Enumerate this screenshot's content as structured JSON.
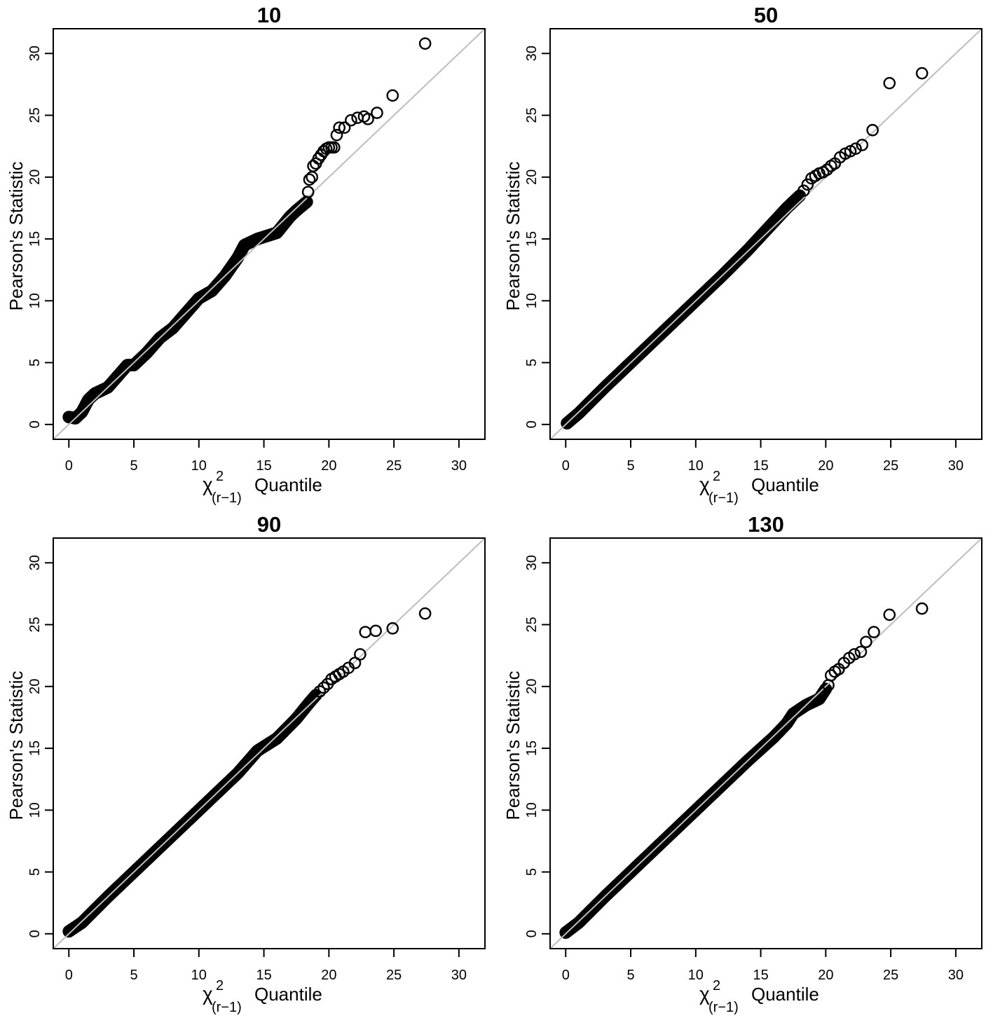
{
  "chart_data": [
    {
      "type": "scatter",
      "title": "10",
      "xlabel_symbol": "χ",
      "xlabel_superscript": "2",
      "xlabel_subscript": "(r−1)",
      "xlabel_text": "Quantile",
      "ylabel": "Pearson's Statistic",
      "xlim": [
        -1.2,
        32
      ],
      "ylim": [
        -1.2,
        32
      ],
      "xticks": [
        "0",
        "5",
        "10",
        "15",
        "20",
        "25",
        "30"
      ],
      "yticks": [
        "0",
        "5",
        "10",
        "15",
        "20",
        "25",
        "30"
      ],
      "reference_line": "y = x",
      "reference_line_color": "#bdbdbd",
      "point_style": "open-circle",
      "grid": false,
      "series": [
        {
          "dense_trend": [
            [
              0.0,
              0.6
            ],
            [
              0.5,
              0.5
            ],
            [
              1.0,
              1.0
            ],
            [
              1.5,
              2.0
            ],
            [
              2.0,
              2.5
            ],
            [
              3.0,
              3.0
            ],
            [
              4.0,
              4.2
            ],
            [
              4.5,
              4.8
            ],
            [
              5.0,
              4.8
            ],
            [
              6.0,
              5.8
            ],
            [
              7.0,
              7.0
            ],
            [
              8.0,
              7.8
            ],
            [
              9.0,
              9.0
            ],
            [
              10.0,
              10.2
            ],
            [
              11.0,
              10.8
            ],
            [
              12.0,
              12.0
            ],
            [
              13.0,
              13.5
            ],
            [
              13.5,
              14.5
            ],
            [
              14.5,
              15.0
            ],
            [
              16.0,
              15.5
            ],
            [
              17.0,
              16.8
            ],
            [
              17.5,
              17.3
            ],
            [
              18.3,
              18.0
            ]
          ],
          "scatter_points": [
            [
              18.4,
              18.8
            ],
            [
              18.5,
              19.8
            ],
            [
              18.7,
              20.0
            ],
            [
              18.8,
              20.9
            ],
            [
              19.0,
              21.1
            ],
            [
              19.2,
              21.5
            ],
            [
              19.4,
              21.8
            ],
            [
              19.6,
              22.1
            ],
            [
              19.8,
              22.3
            ],
            [
              20.0,
              22.4
            ],
            [
              20.2,
              22.4
            ],
            [
              20.4,
              22.4
            ],
            [
              20.6,
              23.4
            ],
            [
              20.8,
              24.0
            ],
            [
              21.2,
              24.0
            ],
            [
              21.7,
              24.6
            ],
            [
              22.2,
              24.8
            ],
            [
              22.7,
              24.9
            ],
            [
              23.0,
              24.7
            ],
            [
              23.7,
              25.2
            ],
            [
              24.9,
              26.6
            ],
            [
              27.4,
              30.8
            ]
          ]
        }
      ]
    },
    {
      "type": "scatter",
      "title": "50",
      "xlabel_symbol": "χ",
      "xlabel_superscript": "2",
      "xlabel_subscript": "(r−1)",
      "xlabel_text": "Quantile",
      "ylabel": "Pearson's Statistic",
      "xlim": [
        -1.2,
        32
      ],
      "ylim": [
        -1.2,
        32
      ],
      "xticks": [
        "0",
        "5",
        "10",
        "15",
        "20",
        "25",
        "30"
      ],
      "yticks": [
        "0",
        "5",
        "10",
        "15",
        "20",
        "25",
        "30"
      ],
      "reference_line": "y = x",
      "reference_line_color": "#bdbdbd",
      "point_style": "open-circle",
      "grid": false,
      "series": [
        {
          "dense_trend": [
            [
              0.1,
              0.1
            ],
            [
              1.0,
              0.9
            ],
            [
              3.0,
              3.0
            ],
            [
              5.0,
              5.0
            ],
            [
              8.0,
              8.0
            ],
            [
              10.0,
              10.0
            ],
            [
              12.0,
              12.0
            ],
            [
              14.0,
              14.1
            ],
            [
              15.5,
              15.8
            ],
            [
              17.0,
              17.5
            ],
            [
              18.0,
              18.5
            ]
          ],
          "scatter_points": [
            [
              18.3,
              18.9
            ],
            [
              18.6,
              19.4
            ],
            [
              18.9,
              19.9
            ],
            [
              19.2,
              20.1
            ],
            [
              19.5,
              20.3
            ],
            [
              19.8,
              20.4
            ],
            [
              20.1,
              20.6
            ],
            [
              20.4,
              20.9
            ],
            [
              20.7,
              21.1
            ],
            [
              21.1,
              21.6
            ],
            [
              21.5,
              21.9
            ],
            [
              21.9,
              22.1
            ],
            [
              22.3,
              22.3
            ],
            [
              22.8,
              22.6
            ],
            [
              23.6,
              23.8
            ],
            [
              24.9,
              27.6
            ],
            [
              27.4,
              28.4
            ]
          ]
        }
      ]
    },
    {
      "type": "scatter",
      "title": "90",
      "xlabel_symbol": "χ",
      "xlabel_superscript": "2",
      "xlabel_subscript": "(r−1)",
      "xlabel_text": "Quantile",
      "ylabel": "Pearson's Statistic",
      "xlim": [
        -1.2,
        32
      ],
      "ylim": [
        -1.2,
        32
      ],
      "xticks": [
        "0",
        "5",
        "10",
        "15",
        "20",
        "25",
        "30"
      ],
      "yticks": [
        "0",
        "5",
        "10",
        "15",
        "20",
        "25",
        "30"
      ],
      "reference_line": "y = x",
      "reference_line_color": "#bdbdbd",
      "point_style": "open-circle",
      "grid": false,
      "series": [
        {
          "dense_trend": [
            [
              0.0,
              0.2
            ],
            [
              1.0,
              0.9
            ],
            [
              3.0,
              3.0
            ],
            [
              5.0,
              5.0
            ],
            [
              8.0,
              8.0
            ],
            [
              11.0,
              11.0
            ],
            [
              13.0,
              13.0
            ],
            [
              14.5,
              14.8
            ],
            [
              16.0,
              15.8
            ],
            [
              17.5,
              17.4
            ],
            [
              18.5,
              18.7
            ],
            [
              19.0,
              19.3
            ]
          ],
          "scatter_points": [
            [
              19.3,
              19.6
            ],
            [
              19.6,
              19.9
            ],
            [
              19.9,
              20.2
            ],
            [
              20.2,
              20.6
            ],
            [
              20.5,
              20.8
            ],
            [
              20.8,
              21.0
            ],
            [
              21.1,
              21.2
            ],
            [
              21.5,
              21.5
            ],
            [
              22.0,
              21.9
            ],
            [
              22.4,
              22.6
            ],
            [
              22.8,
              24.4
            ],
            [
              23.6,
              24.5
            ],
            [
              24.9,
              24.7
            ],
            [
              27.4,
              25.9
            ]
          ]
        }
      ]
    },
    {
      "type": "scatter",
      "title": "130",
      "xlabel_symbol": "χ",
      "xlabel_superscript": "2",
      "xlabel_subscript": "(r−1)",
      "xlabel_text": "Quantile",
      "ylabel": "Pearson's Statistic",
      "xlim": [
        -1.2,
        32
      ],
      "ylim": [
        -1.2,
        32
      ],
      "xticks": [
        "0",
        "5",
        "10",
        "15",
        "20",
        "25",
        "30"
      ],
      "yticks": [
        "0",
        "5",
        "10",
        "15",
        "20",
        "25",
        "30"
      ],
      "reference_line": "y = x",
      "reference_line_color": "#bdbdbd",
      "point_style": "open-circle",
      "grid": false,
      "series": [
        {
          "dense_trend": [
            [
              0.0,
              0.1
            ],
            [
              1.0,
              0.9
            ],
            [
              3.0,
              3.0
            ],
            [
              5.0,
              5.0
            ],
            [
              8.0,
              8.0
            ],
            [
              11.0,
              11.0
            ],
            [
              14.0,
              14.0
            ],
            [
              16.0,
              15.9
            ],
            [
              17.0,
              17.0
            ],
            [
              17.5,
              17.8
            ],
            [
              18.5,
              18.5
            ],
            [
              19.5,
              19.0
            ],
            [
              20.0,
              19.8
            ]
          ],
          "scatter_points": [
            [
              20.2,
              20.1
            ],
            [
              20.4,
              20.9
            ],
            [
              20.7,
              21.2
            ],
            [
              21.0,
              21.4
            ],
            [
              21.4,
              21.9
            ],
            [
              21.8,
              22.3
            ],
            [
              22.2,
              22.6
            ],
            [
              22.7,
              22.8
            ],
            [
              23.1,
              23.6
            ],
            [
              23.7,
              24.4
            ],
            [
              24.9,
              25.8
            ],
            [
              27.4,
              26.3
            ]
          ]
        }
      ]
    }
  ]
}
